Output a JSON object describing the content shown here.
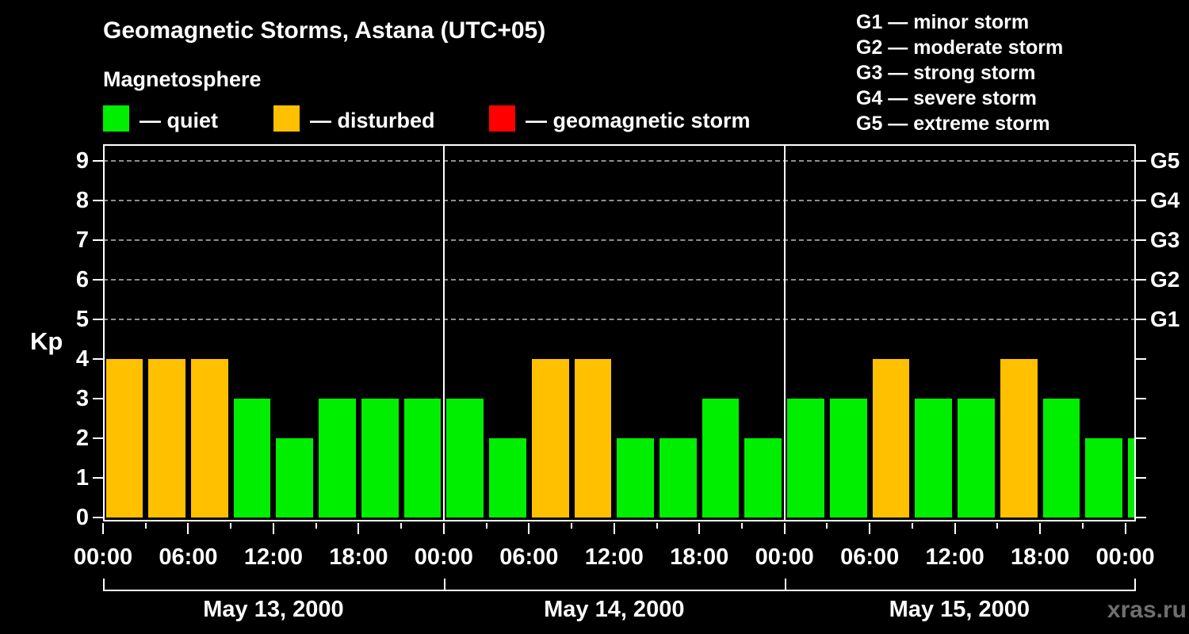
{
  "header": {
    "title": "Geomagnetic Storms, Astana (UTC+05)",
    "subtitle": "Magnetosphere",
    "legend": [
      {
        "key": "quiet",
        "label": "— quiet"
      },
      {
        "key": "disturbed",
        "label": "— disturbed"
      },
      {
        "key": "storm",
        "label": "— geomagnetic storm"
      }
    ],
    "g_legend": [
      "G1 — minor storm",
      "G2 — moderate storm",
      "G3 — strong storm",
      "G4 — severe storm",
      "G5 — extreme storm"
    ]
  },
  "colors": {
    "quiet": "#00ee00",
    "disturbed": "#ffc000",
    "storm": "#ff0000",
    "axis": "#ffffff",
    "grid": "#8f8f8f",
    "watermark": "#6f6f6f",
    "background": "#000000"
  },
  "chart_data": {
    "type": "bar",
    "title": "Geomagnetic Storms, Astana (UTC+05)",
    "subtitle": "Magnetosphere",
    "ylabel": "Kp",
    "ylim": [
      0,
      9.5
    ],
    "y_ticks": [
      0,
      1,
      2,
      3,
      4,
      5,
      6,
      7,
      8,
      9
    ],
    "grid_levels": [
      5,
      6,
      7,
      8,
      9
    ],
    "g_levels": [
      {
        "kp": 5,
        "label": "G1"
      },
      {
        "kp": 6,
        "label": "G2"
      },
      {
        "kp": 7,
        "label": "G3"
      },
      {
        "kp": 8,
        "label": "G4"
      },
      {
        "kp": 9,
        "label": "G5"
      }
    ],
    "hours_per_bar": 3,
    "x_tick_step_hours": 3,
    "x_label_step_hours": 6,
    "x_tick_labels": [
      "00:00",
      "06:00",
      "12:00",
      "18:00",
      "00:00",
      "06:00",
      "12:00",
      "18:00",
      "00:00",
      "06:00",
      "12:00",
      "18:00",
      "00:00"
    ],
    "days": [
      {
        "date": "May 13, 2000",
        "kp": [
          4,
          4,
          4,
          3,
          2,
          3,
          3,
          3
        ]
      },
      {
        "date": "May 14, 2000",
        "kp": [
          3,
          2,
          4,
          4,
          2,
          2,
          3,
          2
        ]
      },
      {
        "date": "May 15, 2000",
        "kp": [
          3,
          3,
          4,
          3,
          3,
          4,
          3,
          2
        ]
      }
    ],
    "partial_next_day_kp": 2,
    "color_rule": {
      "quiet_max": 3,
      "disturbed_max": 4
    },
    "legend_position": "top-left",
    "grid": "dashed horizontal at G-storm levels only"
  },
  "watermark": "xras.ru"
}
